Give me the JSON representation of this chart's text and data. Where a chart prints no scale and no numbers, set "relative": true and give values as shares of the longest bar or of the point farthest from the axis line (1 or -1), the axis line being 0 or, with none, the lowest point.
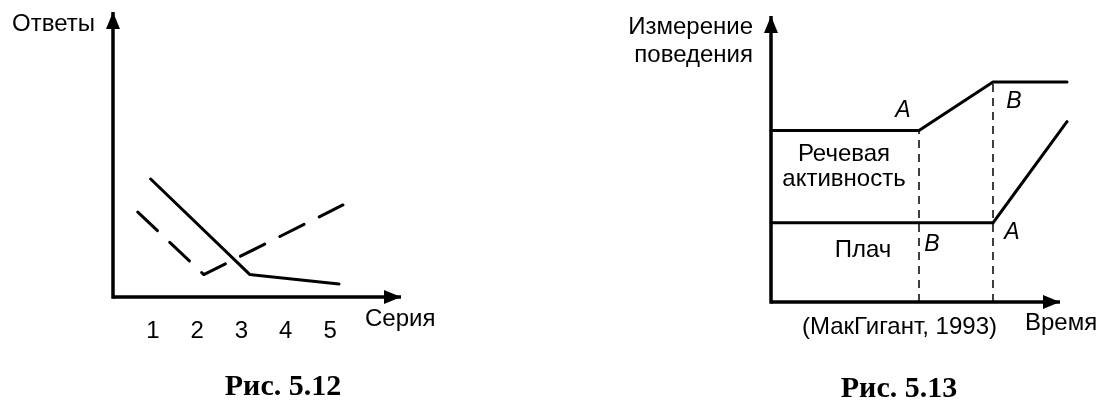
{
  "chart_data": [
    {
      "type": "line",
      "title": "Рис. 5.12",
      "xlabel": "Серия",
      "ylabel": "Ответы",
      "relative": true,
      "xlim": [
        0.1,
        6.6
      ],
      "xticks": [
        1,
        2,
        3,
        4,
        5
      ],
      "tick_labels": "x",
      "series": [
        {
          "x": [
            0.95,
            3.19,
            5.2
          ],
          "values": [
            1,
            0.19,
            0.11
          ],
          "color": "#000000",
          "line_style": "solid"
        },
        {
          "x": [
            0.66,
            2.15,
            5.29
          ],
          "values": [
            0.72,
            0.19,
            0.78
          ],
          "color": "#000000",
          "line_style": "dashed"
        }
      ]
    },
    {
      "type": "line",
      "title": "Рис. 5.13",
      "xlabel": "Время",
      "ylabel": "Измерение поведения",
      "relative": true,
      "categories": [
        null,
        null,
        null,
        null,
        null
      ],
      "tick_labels": false,
      "series": [
        {
          "name": "Речевая активность",
          "color": "#000000",
          "values": [
            0.78,
            0.78,
            0.78,
            1,
            1
          ]
        },
        {
          "name": "Плач",
          "color": "#000000",
          "values": [
            0.36,
            0.36,
            0.36,
            0.36,
            0.82
          ]
        }
      ],
      "annotations": [
        "A",
        "B",
        "B",
        "A",
        "(МакГигант, 1993)"
      ]
    }
  ]
}
